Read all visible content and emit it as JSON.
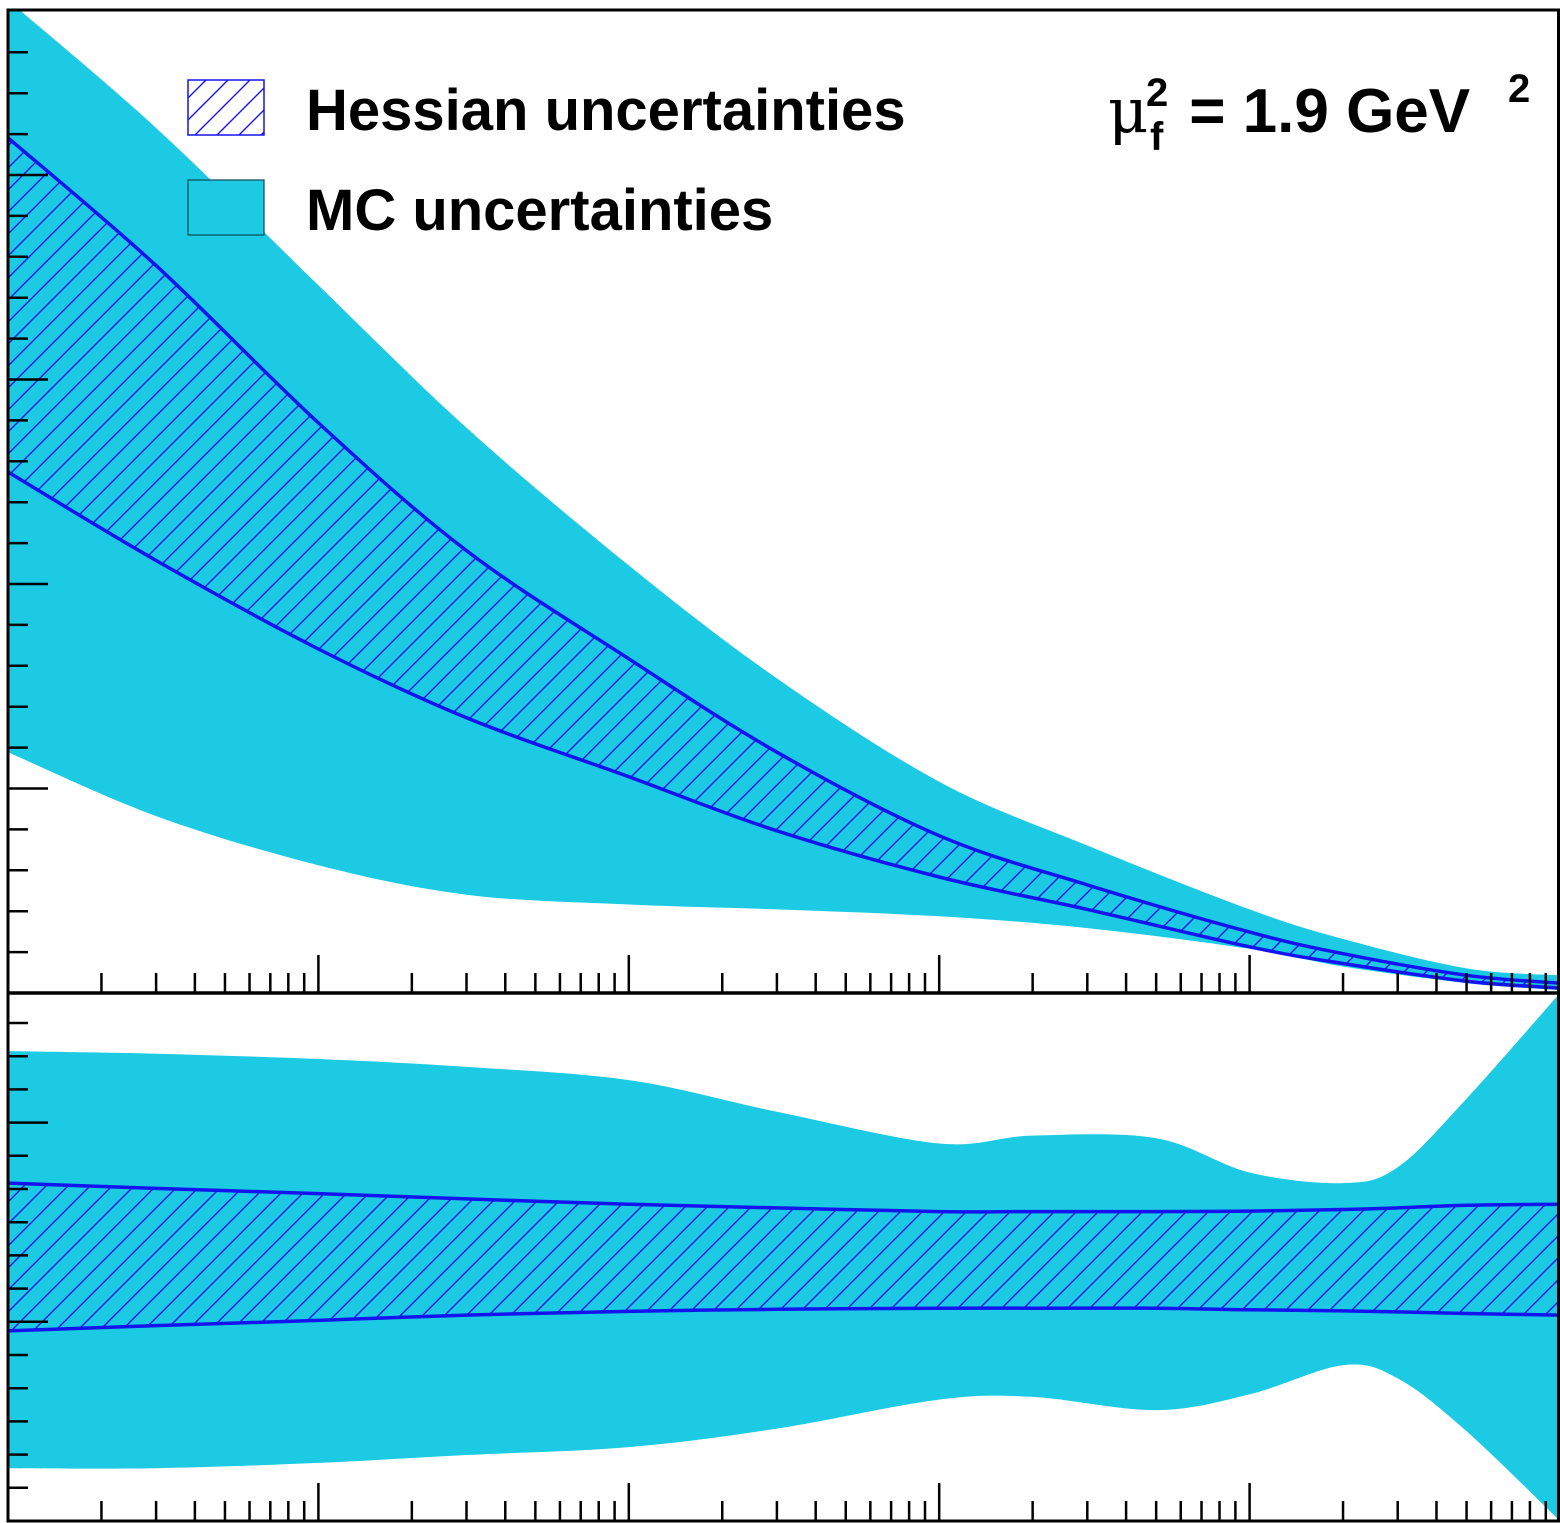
{
  "legend": {
    "hessian_label": "Hessian uncertainties",
    "mc_label": "MC uncertainties"
  },
  "annotation": {
    "mu_symbol": "μ",
    "sup": "2",
    "sub": "f",
    "rest": " = 1.9 GeV",
    "rest_sup": "2"
  },
  "colors": {
    "mc_fill": "#1ccbe3",
    "hessian_line": "#1414ee",
    "axis": "#000000"
  },
  "chart_data": [
    {
      "type": "area",
      "panel": "top",
      "xscale": "log",
      "xlim": [
        1e-05,
        1
      ],
      "ylim": [
        0,
        1
      ],
      "grid": false,
      "legend_position": "top-left",
      "x": [
        1e-05,
        3e-05,
        0.0001,
        0.0003,
        0.001,
        0.003,
        0.01,
        0.03,
        0.1,
        0.2,
        0.5,
        1
      ],
      "series": [
        {
          "name": "MC uncertainties",
          "upper": [
            1.01,
            0.88,
            0.72,
            0.575,
            0.435,
            0.32,
            0.215,
            0.15,
            0.085,
            0.055,
            0.025,
            0.018
          ],
          "lower": [
            0.245,
            0.18,
            0.13,
            0.1,
            0.09,
            0.085,
            0.078,
            0.066,
            0.045,
            0.027,
            0.01,
            0.003
          ]
        },
        {
          "name": "Hessian uncertainties",
          "upper": [
            0.87,
            0.74,
            0.58,
            0.45,
            0.34,
            0.245,
            0.16,
            0.11,
            0.062,
            0.04,
            0.018,
            0.01
          ],
          "lower": [
            0.53,
            0.44,
            0.35,
            0.28,
            0.22,
            0.165,
            0.118,
            0.085,
            0.047,
            0.03,
            0.012,
            0.005
          ]
        }
      ]
    },
    {
      "type": "area",
      "panel": "bottom",
      "xscale": "log",
      "xlim": [
        1e-05,
        1
      ],
      "ylim": [
        0,
        1
      ],
      "grid": false,
      "x": [
        1e-05,
        3e-05,
        0.0001,
        0.0003,
        0.001,
        0.003,
        0.01,
        0.02,
        0.05,
        0.1,
        0.2,
        0.3,
        0.5,
        1
      ],
      "series": [
        {
          "name": "MC uncertainties",
          "upper": [
            0.89,
            0.885,
            0.875,
            0.86,
            0.835,
            0.775,
            0.715,
            0.73,
            0.725,
            0.66,
            0.64,
            0.67,
            0.8,
            1.0
          ],
          "lower": [
            0.1,
            0.1,
            0.11,
            0.125,
            0.14,
            0.175,
            0.23,
            0.235,
            0.21,
            0.24,
            0.295,
            0.27,
            0.17,
            0.0
          ]
        },
        {
          "name": "Hessian uncertainties",
          "upper": [
            0.64,
            0.63,
            0.62,
            0.61,
            0.6,
            0.593,
            0.586,
            0.586,
            0.586,
            0.587,
            0.59,
            0.593,
            0.598,
            0.6
          ],
          "lower": [
            0.36,
            0.37,
            0.38,
            0.39,
            0.397,
            0.401,
            0.403,
            0.403,
            0.403,
            0.4,
            0.398,
            0.396,
            0.393,
            0.39
          ]
        }
      ]
    }
  ]
}
